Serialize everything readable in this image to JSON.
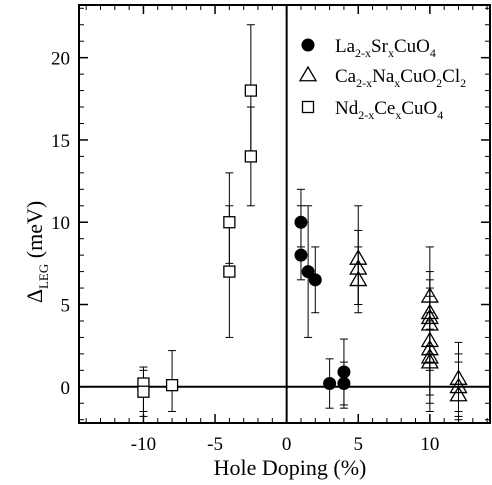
{
  "chart_data": {
    "type": "scatter",
    "xlabel": "Hole Doping (%)",
    "ylabel": {
      "base": "Δ",
      "sub": "LEG",
      "rest": " (meV)"
    },
    "xlim": [
      -14.5,
      14.2
    ],
    "ylim": [
      -2.2,
      23.2
    ],
    "x_ticks": [
      -10,
      -5,
      0,
      5,
      10
    ],
    "x_tick_labels": [
      "-10",
      "-5",
      "0",
      "5",
      "10"
    ],
    "y_ticks": [
      0,
      5,
      10,
      15,
      20
    ],
    "y_tick_labels": [
      "0",
      "5",
      "10",
      "15",
      "20"
    ],
    "reference_lines": {
      "vertical_x": 0,
      "horizontal_y": 0
    },
    "grid": false,
    "legend_position": "top-right",
    "series": [
      {
        "name": "La2-xSrxCuO4",
        "legend_parts": [
          [
            "La",
            ""
          ],
          [
            "2-x",
            "sub"
          ],
          [
            "Sr",
            ""
          ],
          [
            "x",
            "sub"
          ],
          [
            "CuO",
            ""
          ],
          [
            "4",
            "sub"
          ]
        ],
        "marker": "filled-circle",
        "points": [
          {
            "x": 1,
            "y": 10.0,
            "lo": 8.5,
            "hi": 12.0
          },
          {
            "x": 1,
            "y": 8.0,
            "lo": 6.5,
            "hi": 11.0
          },
          {
            "x": 1.5,
            "y": 7.0,
            "lo": 3.0,
            "hi": 11.0
          },
          {
            "x": 2,
            "y": 6.5,
            "lo": 4.5,
            "hi": 8.5
          },
          {
            "x": 3,
            "y": 0.2,
            "lo": -1.3,
            "hi": 1.7
          },
          {
            "x": 4,
            "y": 0.2,
            "lo": -1.3,
            "hi": 1.5
          },
          {
            "x": 4,
            "y": 0.9,
            "lo": -1.1,
            "hi": 2.9
          }
        ]
      },
      {
        "name": "Ca2-xNaxCuO2Cl2",
        "legend_parts": [
          [
            "Ca",
            ""
          ],
          [
            "2-x",
            "sub"
          ],
          [
            "Na",
            ""
          ],
          [
            "x",
            "sub"
          ],
          [
            "CuO",
            ""
          ],
          [
            "2",
            "sub"
          ],
          [
            "Cl",
            ""
          ],
          [
            "2",
            "sub"
          ]
        ],
        "marker": "open-triangle",
        "points": [
          {
            "x": 5,
            "y": 7.8,
            "lo": 5.0,
            "hi": 11.0
          },
          {
            "x": 5,
            "y": 7.2,
            "lo": 5.0,
            "hi": 9.5
          },
          {
            "x": 5,
            "y": 6.5,
            "lo": 4.5,
            "hi": 8.5
          },
          {
            "x": 10,
            "y": 5.5,
            "lo": 2.5,
            "hi": 8.5
          },
          {
            "x": 10,
            "y": 4.5,
            "lo": 2.0,
            "hi": 7.0
          },
          {
            "x": 10,
            "y": 4.2,
            "lo": 1.5,
            "hi": 6.5
          },
          {
            "x": 10,
            "y": 3.8,
            "lo": 1.0,
            "hi": 6.0
          },
          {
            "x": 10,
            "y": 2.8,
            "lo": 0.0,
            "hi": 5.5
          },
          {
            "x": 10,
            "y": 2.3,
            "lo": -0.5,
            "hi": 4.5
          },
          {
            "x": 10,
            "y": 1.8,
            "lo": -1.0,
            "hi": 4.0
          },
          {
            "x": 10,
            "y": 1.5,
            "lo": -1.5,
            "hi": 3.5
          },
          {
            "x": 12,
            "y": 0.5,
            "lo": -1.5,
            "hi": 2.7
          },
          {
            "x": 12,
            "y": 0.0,
            "lo": -1.8,
            "hi": 2.0
          },
          {
            "x": 12,
            "y": -0.5,
            "lo": -2.0,
            "hi": 1.5
          }
        ]
      },
      {
        "name": "Nd2-xCexCuO4",
        "legend_parts": [
          [
            "Nd",
            ""
          ],
          [
            "2-x",
            "sub"
          ],
          [
            "Ce",
            ""
          ],
          [
            "x",
            "sub"
          ],
          [
            "CuO",
            ""
          ],
          [
            "4",
            "sub"
          ]
        ],
        "marker": "open-square",
        "points": [
          {
            "x": -10,
            "y": 0.2,
            "lo": -1.5,
            "hi": 1.2
          },
          {
            "x": -10,
            "y": -0.3,
            "lo": -1.8,
            "hi": 1.0
          },
          {
            "x": -8,
            "y": 0.1,
            "lo": -1.5,
            "hi": 2.2
          },
          {
            "x": -4,
            "y": 10.0,
            "lo": 7.5,
            "hi": 13.0
          },
          {
            "x": -4,
            "y": 7.0,
            "lo": 3.0,
            "hi": 11.0
          },
          {
            "x": -2.5,
            "y": 18.0,
            "lo": 14.0,
            "hi": 22.0
          },
          {
            "x": -2.5,
            "y": 14.0,
            "lo": 11.0,
            "hi": 17.0
          }
        ]
      }
    ]
  }
}
